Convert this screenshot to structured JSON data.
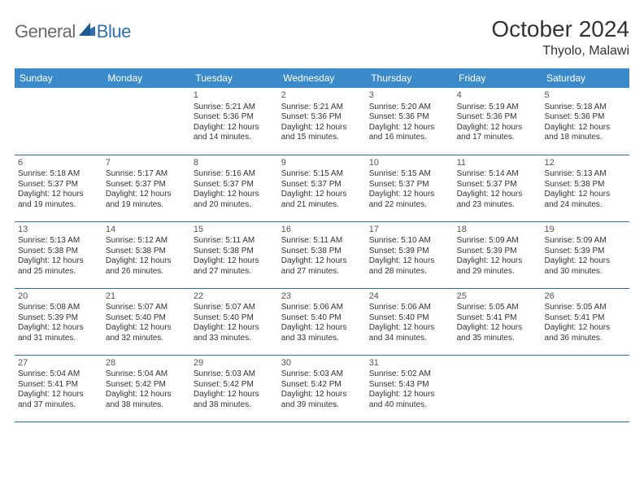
{
  "brand": {
    "general": "General",
    "blue": "Blue"
  },
  "title": "October 2024",
  "location": "Thyolo, Malawi",
  "colors": {
    "header_bg": "#3b8bca",
    "header_text": "#ffffff",
    "rule": "#2f6fb0",
    "text": "#333333",
    "logo_gray": "#6b6b6b",
    "logo_blue": "#2f6fb0",
    "background": "#ffffff"
  },
  "day_names": [
    "Sunday",
    "Monday",
    "Tuesday",
    "Wednesday",
    "Thursday",
    "Friday",
    "Saturday"
  ],
  "weeks": [
    [
      null,
      null,
      {
        "n": "1",
        "sr": "Sunrise: 5:21 AM",
        "ss": "Sunset: 5:36 PM",
        "d1": "Daylight: 12 hours",
        "d2": "and 14 minutes."
      },
      {
        "n": "2",
        "sr": "Sunrise: 5:21 AM",
        "ss": "Sunset: 5:36 PM",
        "d1": "Daylight: 12 hours",
        "d2": "and 15 minutes."
      },
      {
        "n": "3",
        "sr": "Sunrise: 5:20 AM",
        "ss": "Sunset: 5:36 PM",
        "d1": "Daylight: 12 hours",
        "d2": "and 16 minutes."
      },
      {
        "n": "4",
        "sr": "Sunrise: 5:19 AM",
        "ss": "Sunset: 5:36 PM",
        "d1": "Daylight: 12 hours",
        "d2": "and 17 minutes."
      },
      {
        "n": "5",
        "sr": "Sunrise: 5:18 AM",
        "ss": "Sunset: 5:36 PM",
        "d1": "Daylight: 12 hours",
        "d2": "and 18 minutes."
      }
    ],
    [
      {
        "n": "6",
        "sr": "Sunrise: 5:18 AM",
        "ss": "Sunset: 5:37 PM",
        "d1": "Daylight: 12 hours",
        "d2": "and 19 minutes."
      },
      {
        "n": "7",
        "sr": "Sunrise: 5:17 AM",
        "ss": "Sunset: 5:37 PM",
        "d1": "Daylight: 12 hours",
        "d2": "and 19 minutes."
      },
      {
        "n": "8",
        "sr": "Sunrise: 5:16 AM",
        "ss": "Sunset: 5:37 PM",
        "d1": "Daylight: 12 hours",
        "d2": "and 20 minutes."
      },
      {
        "n": "9",
        "sr": "Sunrise: 5:15 AM",
        "ss": "Sunset: 5:37 PM",
        "d1": "Daylight: 12 hours",
        "d2": "and 21 minutes."
      },
      {
        "n": "10",
        "sr": "Sunrise: 5:15 AM",
        "ss": "Sunset: 5:37 PM",
        "d1": "Daylight: 12 hours",
        "d2": "and 22 minutes."
      },
      {
        "n": "11",
        "sr": "Sunrise: 5:14 AM",
        "ss": "Sunset: 5:37 PM",
        "d1": "Daylight: 12 hours",
        "d2": "and 23 minutes."
      },
      {
        "n": "12",
        "sr": "Sunrise: 5:13 AM",
        "ss": "Sunset: 5:38 PM",
        "d1": "Daylight: 12 hours",
        "d2": "and 24 minutes."
      }
    ],
    [
      {
        "n": "13",
        "sr": "Sunrise: 5:13 AM",
        "ss": "Sunset: 5:38 PM",
        "d1": "Daylight: 12 hours",
        "d2": "and 25 minutes."
      },
      {
        "n": "14",
        "sr": "Sunrise: 5:12 AM",
        "ss": "Sunset: 5:38 PM",
        "d1": "Daylight: 12 hours",
        "d2": "and 26 minutes."
      },
      {
        "n": "15",
        "sr": "Sunrise: 5:11 AM",
        "ss": "Sunset: 5:38 PM",
        "d1": "Daylight: 12 hours",
        "d2": "and 27 minutes."
      },
      {
        "n": "16",
        "sr": "Sunrise: 5:11 AM",
        "ss": "Sunset: 5:38 PM",
        "d1": "Daylight: 12 hours",
        "d2": "and 27 minutes."
      },
      {
        "n": "17",
        "sr": "Sunrise: 5:10 AM",
        "ss": "Sunset: 5:39 PM",
        "d1": "Daylight: 12 hours",
        "d2": "and 28 minutes."
      },
      {
        "n": "18",
        "sr": "Sunrise: 5:09 AM",
        "ss": "Sunset: 5:39 PM",
        "d1": "Daylight: 12 hours",
        "d2": "and 29 minutes."
      },
      {
        "n": "19",
        "sr": "Sunrise: 5:09 AM",
        "ss": "Sunset: 5:39 PM",
        "d1": "Daylight: 12 hours",
        "d2": "and 30 minutes."
      }
    ],
    [
      {
        "n": "20",
        "sr": "Sunrise: 5:08 AM",
        "ss": "Sunset: 5:39 PM",
        "d1": "Daylight: 12 hours",
        "d2": "and 31 minutes."
      },
      {
        "n": "21",
        "sr": "Sunrise: 5:07 AM",
        "ss": "Sunset: 5:40 PM",
        "d1": "Daylight: 12 hours",
        "d2": "and 32 minutes."
      },
      {
        "n": "22",
        "sr": "Sunrise: 5:07 AM",
        "ss": "Sunset: 5:40 PM",
        "d1": "Daylight: 12 hours",
        "d2": "and 33 minutes."
      },
      {
        "n": "23",
        "sr": "Sunrise: 5:06 AM",
        "ss": "Sunset: 5:40 PM",
        "d1": "Daylight: 12 hours",
        "d2": "and 33 minutes."
      },
      {
        "n": "24",
        "sr": "Sunrise: 5:06 AM",
        "ss": "Sunset: 5:40 PM",
        "d1": "Daylight: 12 hours",
        "d2": "and 34 minutes."
      },
      {
        "n": "25",
        "sr": "Sunrise: 5:05 AM",
        "ss": "Sunset: 5:41 PM",
        "d1": "Daylight: 12 hours",
        "d2": "and 35 minutes."
      },
      {
        "n": "26",
        "sr": "Sunrise: 5:05 AM",
        "ss": "Sunset: 5:41 PM",
        "d1": "Daylight: 12 hours",
        "d2": "and 36 minutes."
      }
    ],
    [
      {
        "n": "27",
        "sr": "Sunrise: 5:04 AM",
        "ss": "Sunset: 5:41 PM",
        "d1": "Daylight: 12 hours",
        "d2": "and 37 minutes."
      },
      {
        "n": "28",
        "sr": "Sunrise: 5:04 AM",
        "ss": "Sunset: 5:42 PM",
        "d1": "Daylight: 12 hours",
        "d2": "and 38 minutes."
      },
      {
        "n": "29",
        "sr": "Sunrise: 5:03 AM",
        "ss": "Sunset: 5:42 PM",
        "d1": "Daylight: 12 hours",
        "d2": "and 38 minutes."
      },
      {
        "n": "30",
        "sr": "Sunrise: 5:03 AM",
        "ss": "Sunset: 5:42 PM",
        "d1": "Daylight: 12 hours",
        "d2": "and 39 minutes."
      },
      {
        "n": "31",
        "sr": "Sunrise: 5:02 AM",
        "ss": "Sunset: 5:43 PM",
        "d1": "Daylight: 12 hours",
        "d2": "and 40 minutes."
      },
      null,
      null
    ]
  ]
}
